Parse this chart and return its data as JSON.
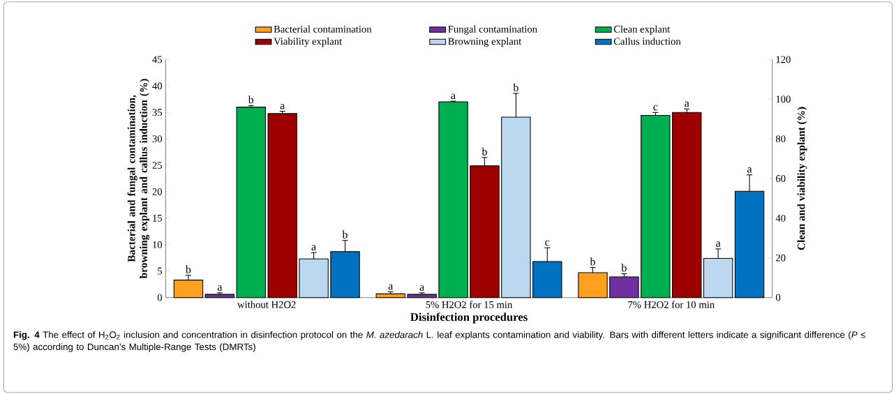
{
  "chart_data": {
    "type": "bar",
    "categories": [
      "without H2O2",
      "5% H2O2 for 15 min",
      "7% H2O2 for 10 min"
    ],
    "xlabel": "Disinfection procedures",
    "ylabel": "Bacterial and fungal contamination, browning explant and callus induction (%)",
    "y2label": "Clean and viability explant (%)",
    "ylim": [
      0,
      45
    ],
    "yticks": [
      0,
      5,
      10,
      15,
      20,
      25,
      30,
      35,
      40,
      45
    ],
    "y2lim": [
      0,
      120
    ],
    "y2ticks": [
      0,
      20,
      40,
      60,
      80,
      100,
      120
    ],
    "legend": "top",
    "grid": false,
    "series": [
      {
        "name": "Bacterial contamination",
        "color": "#ffa020",
        "values": [
          3.3,
          0.7,
          4.7
        ],
        "errors": [
          0.9,
          0.4,
          1.0
        ],
        "value_labels": [
          "b",
          "a",
          "b"
        ]
      },
      {
        "name": "Fungal contamination",
        "color": "#7030a0",
        "values": [
          0.6,
          0.6,
          3.9
        ],
        "errors": [
          0.3,
          0.3,
          0.6
        ],
        "value_labels": [
          "a",
          "a",
          "b"
        ]
      },
      {
        "name": "Clean explant",
        "color": "#00b050",
        "axis": "y2",
        "values": [
          96,
          98.7,
          91.8
        ],
        "errors": [
          0.8,
          0.3,
          1.5
        ],
        "value_labels": [
          "b",
          "a",
          "c"
        ]
      },
      {
        "name": "Viability explant",
        "color": "#9e0000",
        "axis": "y2",
        "values": [
          92.8,
          66.4,
          93.3
        ],
        "errors": [
          1.1,
          4.2,
          1.8
        ],
        "value_labels": [
          "a",
          "b",
          "a"
        ]
      },
      {
        "name": "Browning explant",
        "color": "#bcd8f0",
        "values": [
          7.3,
          34.1,
          7.4
        ],
        "errors": [
          1.2,
          4.5,
          1.8
        ],
        "value_labels": [
          "a",
          "b",
          "a"
        ]
      },
      {
        "name": "Callus induction",
        "color": "#0070c0",
        "values": [
          8.7,
          6.8,
          20.1
        ],
        "errors": [
          2.1,
          2.6,
          3.1
        ],
        "value_labels": [
          "b",
          "c",
          "a"
        ]
      }
    ],
    "annotations": [
      "**Fig. 4** The effect of H$_{2}$O$_{2}$ inclusion and concentration in disinfection protocol on the *M. azedarach* L. leaf explants contamination and viability. Bars with different letters indicate a significant difference (*P* ≤ 5%) according to Duncan’s Multiple-Range Tests (DMRTs)"
    ]
  }
}
